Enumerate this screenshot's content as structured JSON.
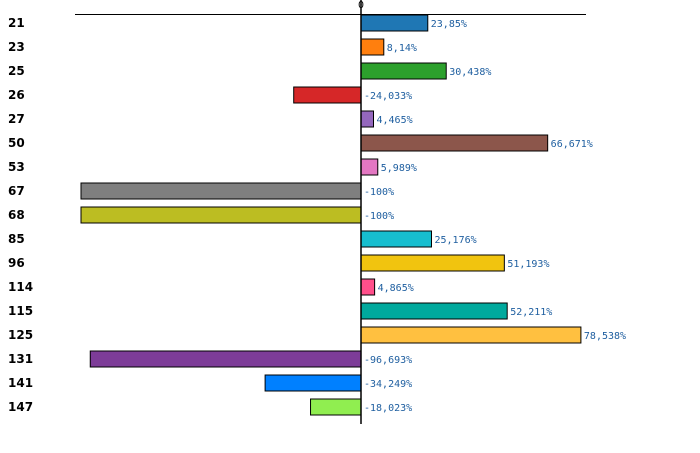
{
  "chart_data": {
    "type": "bar",
    "orientation": "horizontal",
    "title": "",
    "xlabel": "",
    "ylabel": "",
    "xlim": [
      -100,
      80
    ],
    "zero_label": "0",
    "highlight_category": "26",
    "highlight_color": "#cc0000",
    "categories": [
      "21",
      "23",
      "25",
      "26",
      "27",
      "50",
      "53",
      "67",
      "68",
      "85",
      "96",
      "114",
      "115",
      "125",
      "131",
      "141",
      "147"
    ],
    "values": [
      23.85,
      8.14,
      30.438,
      -24.033,
      4.465,
      66.671,
      5.989,
      -100,
      -100,
      25.176,
      51.193,
      4.865,
      52.211,
      78.538,
      -96.693,
      -34.249,
      -18.023
    ],
    "value_labels": [
      "23,85%",
      "8,14%",
      "30,438%",
      "-24,033%",
      "4,465%",
      "66,671%",
      "5,989%",
      "-100%",
      "-100%",
      "25,176%",
      "51,193%",
      "4,865%",
      "52,211%",
      "78,538%",
      "-96,693%",
      "-34,249%",
      "-18,023%"
    ],
    "colors": [
      "#1f77b4",
      "#ff7f0e",
      "#2ca02c",
      "#d62728",
      "#9467bd",
      "#8c564b",
      "#e377c2",
      "#7f7f7f",
      "#bcbd22",
      "#17becf",
      "#f1c40f",
      "#ff4f8b",
      "#00a99d",
      "#ffc040",
      "#7d3c98",
      "#0080ff",
      "#90ee50"
    ]
  }
}
